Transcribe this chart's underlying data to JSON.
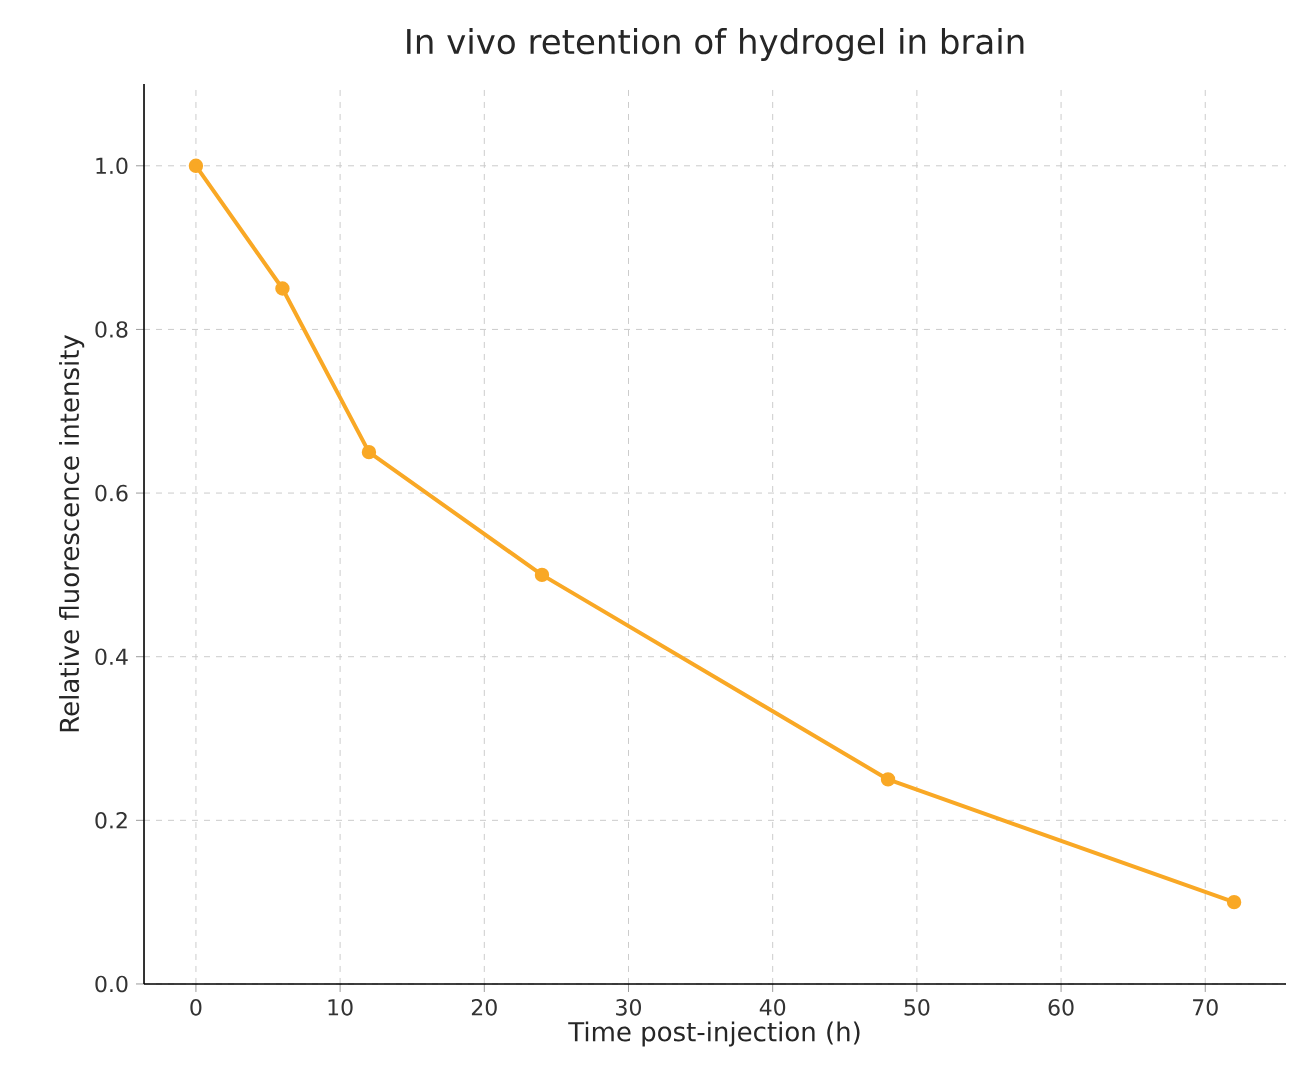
{
  "chart_data": {
    "type": "line",
    "title": "In vivo retention of hydrogel in brain",
    "xlabel": "Time post-injection (h)",
    "ylabel": "Relative fluorescence intensity",
    "series": [
      {
        "color": "#f9a825",
        "x": [
          0,
          6,
          12,
          24,
          48,
          72
        ],
        "values": [
          1.0,
          0.85,
          0.65,
          0.5,
          0.25,
          0.1
        ]
      }
    ],
    "xlim": [
      -3.6,
      75.6
    ],
    "xticks": [
      0,
      10,
      20,
      30,
      40,
      50,
      60,
      70
    ],
    "ylim": [
      0,
      1.1
    ],
    "yticks": [
      {
        "value": 0,
        "label": "0.0"
      },
      {
        "value": 0.2,
        "label": "0.2"
      },
      {
        "value": 0.4,
        "label": "0.4"
      },
      {
        "value": 0.6,
        "label": "0.6"
      },
      {
        "value": 0.8,
        "label": "0.8"
      },
      {
        "value": 1.0,
        "label": "1.0"
      }
    ],
    "grid": true,
    "marker": "circle",
    "line_style": "solid"
  }
}
